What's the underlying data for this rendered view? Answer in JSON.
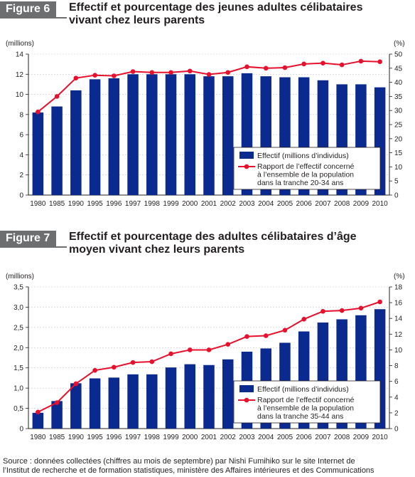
{
  "figures": [
    {
      "tag": "Figure 6",
      "title": "Effectif et pourcentage des jeunes adultes célibataires vivant chez leurs parents",
      "title_lines": [
        "Effectif et pourcentage des jeunes adultes célibataires",
        "vivant chez leurs parents"
      ]
    },
    {
      "tag": "Figure 7",
      "title": "Effectif et pourcentage des adultes célibataires d’âge moyen vivant chez leurs parents",
      "title_lines": [
        "Effectif et pourcentage des adultes célibataires d’âge",
        "moyen vivant chez leurs parents"
      ]
    }
  ],
  "source_lines": [
    "Source : données collectées (chiffres au mois de septembre) par Nishi Fumihiko sur le site Internet de",
    "l’Institut de recherche et de formation statistiques, ministère des Affaires intérieures et des Communications"
  ],
  "colors": {
    "bar": "#0b2a8f",
    "line": "#e8112d",
    "axis": "#231f20",
    "grid": "#c8c8c8",
    "tag_bg": "#6d6e70"
  },
  "chart_data": [
    {
      "type": "bar+line",
      "categories": [
        "1980",
        "1985",
        "1990",
        "1995",
        "1996",
        "1997",
        "1998",
        "1999",
        "2000",
        "2001",
        "2002",
        "2003",
        "2004",
        "2005",
        "2006",
        "2007",
        "2008",
        "2009",
        "2010"
      ],
      "left_unit": "(millions)",
      "right_unit": "(%)",
      "left_ylim": [
        0,
        14
      ],
      "left_ticks": [
        "0",
        "2",
        "4",
        "6",
        "8",
        "10",
        "12",
        "14"
      ],
      "right_ylim": [
        0,
        50
      ],
      "right_ticks": [
        "0",
        "5",
        "10",
        "15",
        "20",
        "25",
        "30",
        "35",
        "40",
        "45",
        "50"
      ],
      "grid": true,
      "legend_position": "bottom-right",
      "series": [
        {
          "name": "Effectif (millions d’individus)",
          "kind": "bar",
          "axis": "left",
          "values": [
            8.2,
            8.8,
            10.4,
            11.5,
            11.6,
            12.0,
            12.0,
            12.0,
            12.0,
            11.8,
            11.8,
            12.1,
            11.8,
            11.7,
            11.7,
            11.4,
            11.0,
            11.0,
            10.7
          ]
        },
        {
          "name": "Rapport de l’effectif concerné à l’ensemble de la population dans la tranche 20-34 ans",
          "name_lines": [
            "Rapport de l’effectif concerné",
            "à l’ensemble de la population",
            "dans la tranche 20-34 ans"
          ],
          "kind": "line",
          "axis": "right",
          "values": [
            29.5,
            35.0,
            41.5,
            42.5,
            42.3,
            43.8,
            43.5,
            43.5,
            44.0,
            42.8,
            43.5,
            45.5,
            45.0,
            45.2,
            46.5,
            46.8,
            46.2,
            47.5,
            47.3
          ]
        }
      ]
    },
    {
      "type": "bar+line",
      "categories": [
        "1980",
        "1985",
        "1990",
        "1995",
        "1996",
        "1997",
        "1998",
        "1999",
        "2000",
        "2001",
        "2002",
        "2003",
        "2004",
        "2005",
        "2006",
        "2007",
        "2008",
        "2009",
        "2010"
      ],
      "left_unit": "(millions)",
      "right_unit": "(%)",
      "left_ylim": [
        0,
        3.5
      ],
      "left_ticks": [
        "0",
        "0,5",
        "1,0",
        "1,5",
        "2,0",
        "2,5",
        "3,0",
        "3,5"
      ],
      "right_ylim": [
        0,
        18
      ],
      "right_ticks": [
        "0",
        "2",
        "4",
        "6",
        "8",
        "10",
        "12",
        "14",
        "16",
        "18"
      ],
      "grid": true,
      "legend_position": "bottom-right",
      "series": [
        {
          "name": "Effectif (millions d’individus)",
          "kind": "bar",
          "axis": "left",
          "values": [
            0.39,
            0.68,
            1.12,
            1.24,
            1.26,
            1.34,
            1.34,
            1.51,
            1.59,
            1.57,
            1.71,
            1.9,
            1.98,
            2.12,
            2.4,
            2.62,
            2.7,
            2.8,
            2.95
          ]
        },
        {
          "name": "Rapport de l’effectif concerné à l’ensemble de la population dans la tranche 35-44 ans",
          "name_lines": [
            "Rapport de l’effectif concerné",
            "à l’ensemble de la population",
            "dans la tranche 35-44 ans"
          ],
          "kind": "line",
          "axis": "right",
          "values": [
            2.1,
            3.3,
            5.7,
            7.4,
            7.8,
            8.4,
            8.5,
            9.5,
            10.0,
            10.0,
            10.7,
            11.7,
            11.8,
            12.5,
            13.9,
            14.9,
            15.0,
            15.3,
            16.1
          ]
        }
      ]
    }
  ]
}
